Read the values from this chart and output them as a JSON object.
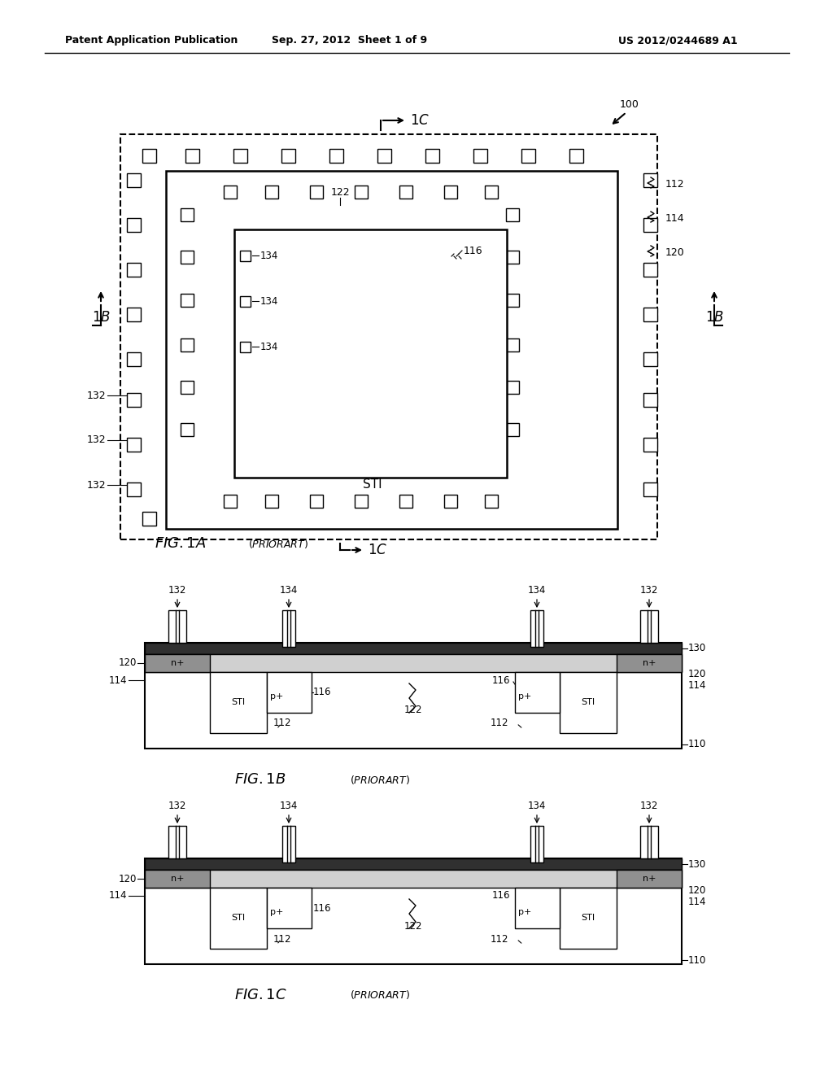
{
  "bg_color": "#ffffff",
  "lc": "#000000",
  "header_left": "Patent Application Publication",
  "header_center": "Sep. 27, 2012  Sheet 1 of 9",
  "header_right": "US 2012/0244689 A1"
}
